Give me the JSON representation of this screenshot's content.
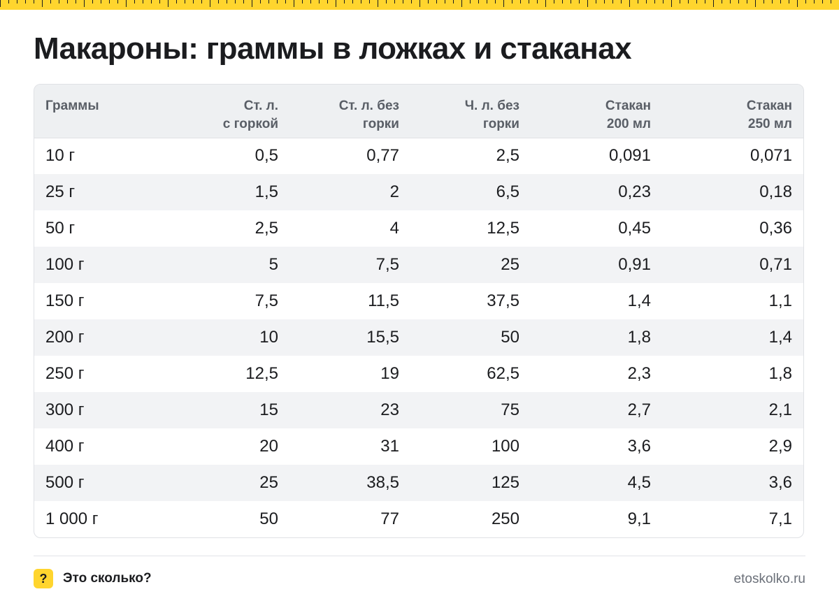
{
  "title": "Макароны: граммы в ложках и стаканах",
  "table": {
    "headers": [
      [
        "Граммы",
        ""
      ],
      [
        "Ст. л.",
        "с горкой"
      ],
      [
        "Ст. л. без",
        "горки"
      ],
      [
        "Ч. л. без",
        "горки"
      ],
      [
        "Стакан",
        "200 мл"
      ],
      [
        "Стакан",
        "250 мл"
      ]
    ],
    "rows": [
      [
        "10 г",
        "0,5",
        "0,77",
        "2,5",
        "0,091",
        "0,071"
      ],
      [
        "25 г",
        "1,5",
        "2",
        "6,5",
        "0,23",
        "0,18"
      ],
      [
        "50 г",
        "2,5",
        "4",
        "12,5",
        "0,45",
        "0,36"
      ],
      [
        "100 г",
        "5",
        "7,5",
        "25",
        "0,91",
        "0,71"
      ],
      [
        "150 г",
        "7,5",
        "11,5",
        "37,5",
        "1,4",
        "1,1"
      ],
      [
        "200 г",
        "10",
        "15,5",
        "50",
        "1,8",
        "1,4"
      ],
      [
        "250 г",
        "12,5",
        "19",
        "62,5",
        "2,3",
        "1,8"
      ],
      [
        "300 г",
        "15",
        "23",
        "75",
        "2,7",
        "2,1"
      ],
      [
        "400 г",
        "20",
        "31",
        "100",
        "3,6",
        "2,9"
      ],
      [
        "500 г",
        "25",
        "38,5",
        "125",
        "4,5",
        "3,6"
      ],
      [
        "1 000 г",
        "50",
        "77",
        "250",
        "9,1",
        "7,1"
      ]
    ]
  },
  "footer": {
    "badge": "?",
    "brand": "Это сколько?",
    "site": "etoskolko.ru"
  },
  "colors": {
    "accent_yellow": "#ffd52e",
    "header_bg": "#eef0f2",
    "stripe_bg": "#f2f3f5",
    "text": "#1b1c1f",
    "muted": "#595e66"
  }
}
